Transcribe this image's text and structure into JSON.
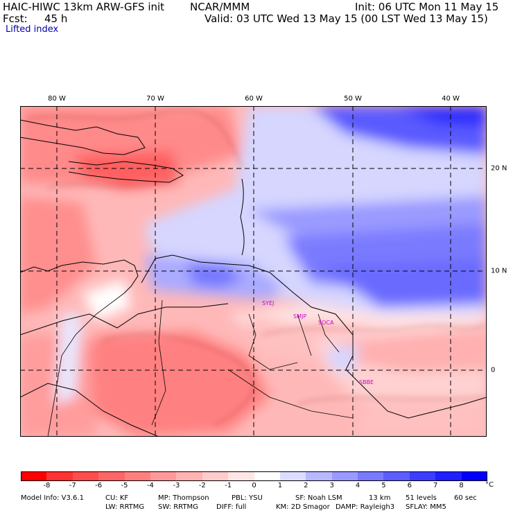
{
  "header": {
    "model_title": "HAIC-HIWC 13km ARW-GFS init",
    "org": "NCAR/MMM",
    "init": "Init: 06 UTC Mon 11 May 15",
    "fcst_label": "Fcst:",
    "fcst_value": "45 h",
    "valid": "Valid: 03 UTC Wed 13 May 15 (00 LST Wed 13 May 15)",
    "field": "Lifted index"
  },
  "map": {
    "lon_labels": [
      "80 W",
      "70 W",
      "60 W",
      "50 W",
      "40 W"
    ],
    "lat_labels": [
      "20 N",
      "10 N",
      "0"
    ],
    "stations": [
      "SYEJ",
      "SMJP",
      "SOCA",
      "SBBE"
    ]
  },
  "colorbar": {
    "labels": [
      "-8",
      "-7",
      "-6",
      "-5",
      "-4",
      "-3",
      "-2",
      "-1",
      "0",
      "1",
      "2",
      "3",
      "4",
      "5",
      "6",
      "7",
      "8"
    ],
    "unit": "°C",
    "colors": [
      "#ff0000",
      "#ff3333",
      "#ff4d4d",
      "#ff6666",
      "#ff7f7f",
      "#ff9999",
      "#ffb3b3",
      "#ffcccc",
      "#ffe6e6",
      "#ffffff",
      "#dcdcff",
      "#b8b8ff",
      "#9999ff",
      "#7a7aff",
      "#5c5cff",
      "#3d3dff",
      "#1f1fff",
      "#0000ff"
    ]
  },
  "footer": {
    "line1": [
      "Model Info: V3.6.1",
      "CU: KF",
      "MP: Thompson",
      "PBL: YSU",
      "SF: Noah LSM",
      "13 km",
      "51 levels",
      "60 sec"
    ],
    "line2": [
      "LW: RRTMG",
      "SW: RRTMG",
      "DIFF: full",
      "KM: 2D Smagor",
      "DAMP: Rayleigh3",
      "SFLAY: MM5"
    ]
  }
}
